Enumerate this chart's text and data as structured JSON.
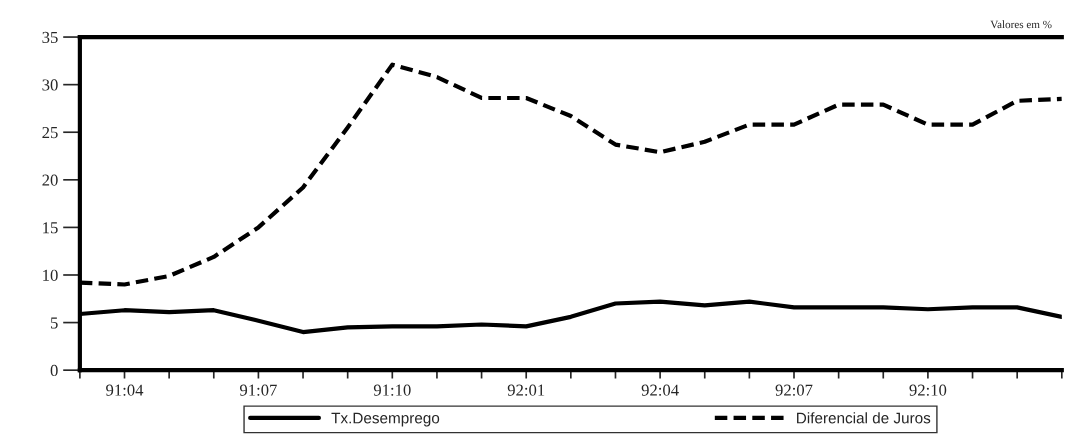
{
  "chart_data": {
    "type": "line",
    "categories": [
      null,
      "91:04",
      null,
      null,
      "91:07",
      null,
      null,
      "91:10",
      null,
      null,
      "92:01",
      null,
      null,
      "92:04",
      null,
      null,
      "92:07",
      null,
      null,
      "92:10",
      null,
      null,
      null
    ],
    "series": [
      {
        "name": "Tx.Desemprego",
        "color": "#000000",
        "line_style": "solid",
        "values": [
          5.9,
          6.3,
          6.1,
          6.3,
          5.2,
          4.0,
          4.5,
          4.6,
          4.6,
          4.8,
          4.6,
          5.6,
          7.0,
          7.2,
          6.8,
          7.2,
          6.6,
          6.6,
          6.6,
          6.4,
          6.6,
          6.6,
          5.6
        ]
      },
      {
        "name": "Diferencial de Juros",
        "color": "#000000",
        "line_style": "dashed",
        "values": [
          9.2,
          9.0,
          9.9,
          11.9,
          15.0,
          19.2,
          25.5,
          32.1,
          30.8,
          28.6,
          28.6,
          26.7,
          23.7,
          22.9,
          24.0,
          25.8,
          25.8,
          27.9,
          27.9,
          25.8,
          25.8,
          28.3,
          28.5
        ]
      }
    ],
    "ylim": [
      0,
      35
    ],
    "yticks": [
      0,
      5,
      10,
      15,
      20,
      25,
      30,
      35
    ],
    "annotations": [
      "Valores em %"
    ],
    "legend": "bottom",
    "grid": false,
    "marker": "none"
  }
}
